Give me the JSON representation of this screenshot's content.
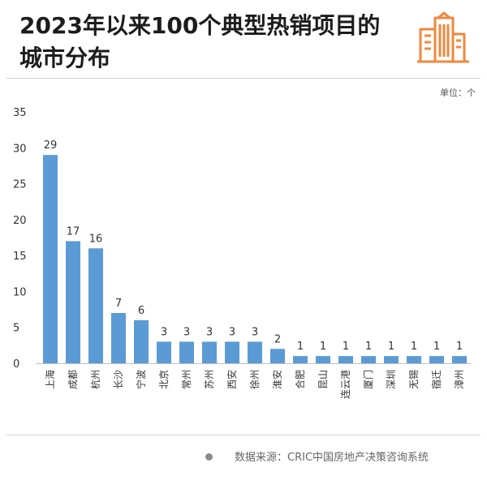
{
  "title": "2023年以来100个典型热销项目的城市分布",
  "unit_label": "单位：个",
  "source": "数据来源：CRIC中国房地产决策咨询系统",
  "icon": "city-buildings-icon",
  "colors": {
    "bar": "#5b9bd5",
    "icon": "#f0883e",
    "text": "#1c1c1c"
  },
  "chart_data": {
    "type": "bar",
    "title": "2023年以来100个典型热销项目的城市分布",
    "xlabel": "",
    "ylabel": "",
    "ylim": [
      0,
      35
    ],
    "yticks": [
      0,
      5,
      10,
      15,
      20,
      25,
      30,
      35
    ],
    "grid": false,
    "categories": [
      "上海",
      "成都",
      "杭州",
      "长沙",
      "宁波",
      "北京",
      "常州",
      "苏州",
      "西安",
      "徐州",
      "淮安",
      "合肥",
      "昆山",
      "连云港",
      "厦门",
      "深圳",
      "无锡",
      "宿迁",
      "漳州"
    ],
    "values": [
      29,
      17,
      16,
      7,
      6,
      3,
      3,
      3,
      3,
      3,
      2,
      1,
      1,
      1,
      1,
      1,
      1,
      1,
      1
    ]
  }
}
